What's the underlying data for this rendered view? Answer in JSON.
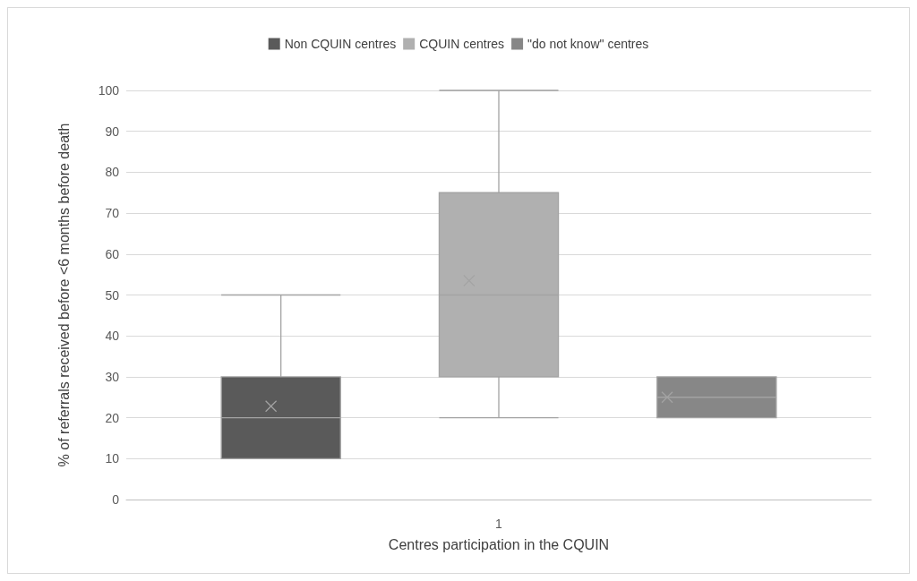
{
  "chart_data": {
    "type": "box",
    "xlabel": "Centres participation in the CQUIN",
    "ylabel": "% of referrals received before <6 months before death",
    "categories": [
      "1"
    ],
    "ylim": [
      0,
      100
    ],
    "yticks": [
      0,
      10,
      20,
      30,
      40,
      50,
      60,
      70,
      80,
      90,
      100
    ],
    "grid": "y",
    "legend": "top",
    "series": [
      {
        "name": "Non CQUIN centres",
        "color": "#5a5a5a",
        "boxes": [
          {
            "low": 10,
            "q1": 10,
            "median": 20,
            "q3": 30,
            "high": 50,
            "mean": 22.8
          }
        ]
      },
      {
        "name": "CQUIN centres",
        "color": "#b0b0b0",
        "boxes": [
          {
            "low": 20,
            "q1": 30,
            "median": 50,
            "q3": 75,
            "high": 100,
            "mean": 53.5
          }
        ]
      },
      {
        "name": "\"do not know\" centres",
        "color": "#878787",
        "boxes": [
          {
            "low": 20,
            "q1": 20,
            "median": 25,
            "q3": 30,
            "high": 30,
            "mean": 25
          }
        ]
      }
    ]
  }
}
